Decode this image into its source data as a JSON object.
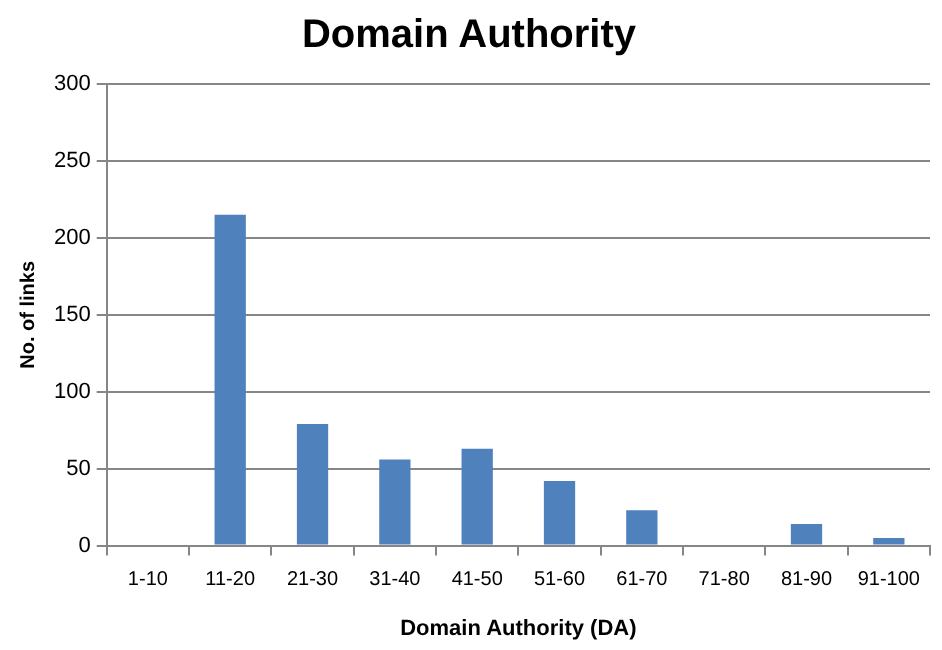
{
  "chart_data": {
    "type": "bar",
    "title": "Domain Authority",
    "xlabel": "Domain Authority (DA)",
    "ylabel": "No. of links",
    "categories": [
      "1-10",
      "11-20",
      "21-30",
      "31-40",
      "41-50",
      "51-60",
      "61-70",
      "71-80",
      "81-90",
      "91-100"
    ],
    "values": [
      0,
      215,
      79,
      56,
      63,
      42,
      23,
      0,
      14,
      5
    ],
    "color": "#4f81bd",
    "ylim": [
      0,
      300
    ],
    "yticks": [
      0,
      50,
      100,
      150,
      200,
      250,
      300
    ],
    "grid": "y",
    "legend": false
  }
}
